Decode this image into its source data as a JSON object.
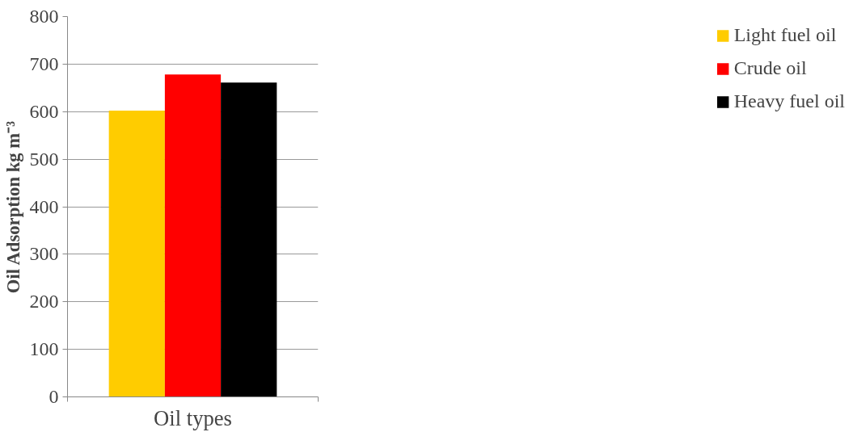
{
  "chart_data": {
    "type": "bar",
    "xlabel": "Oil types",
    "ylabel": "Oil Adsorption kg m⁻³",
    "categories": [
      null
    ],
    "series": [
      {
        "name": "Light fuel oil",
        "color": "#ffcc00",
        "values": [
          602
        ]
      },
      {
        "name": "Crude oil",
        "color": "#ff0000",
        "values": [
          678
        ]
      },
      {
        "name": "Heavy fuel oil",
        "color": "#000000",
        "values": [
          661
        ]
      }
    ],
    "ylim": [
      0,
      800
    ],
    "yticks": [
      0,
      100,
      200,
      300,
      400,
      500,
      600,
      700,
      800
    ],
    "grid": "y",
    "legend": "right"
  }
}
